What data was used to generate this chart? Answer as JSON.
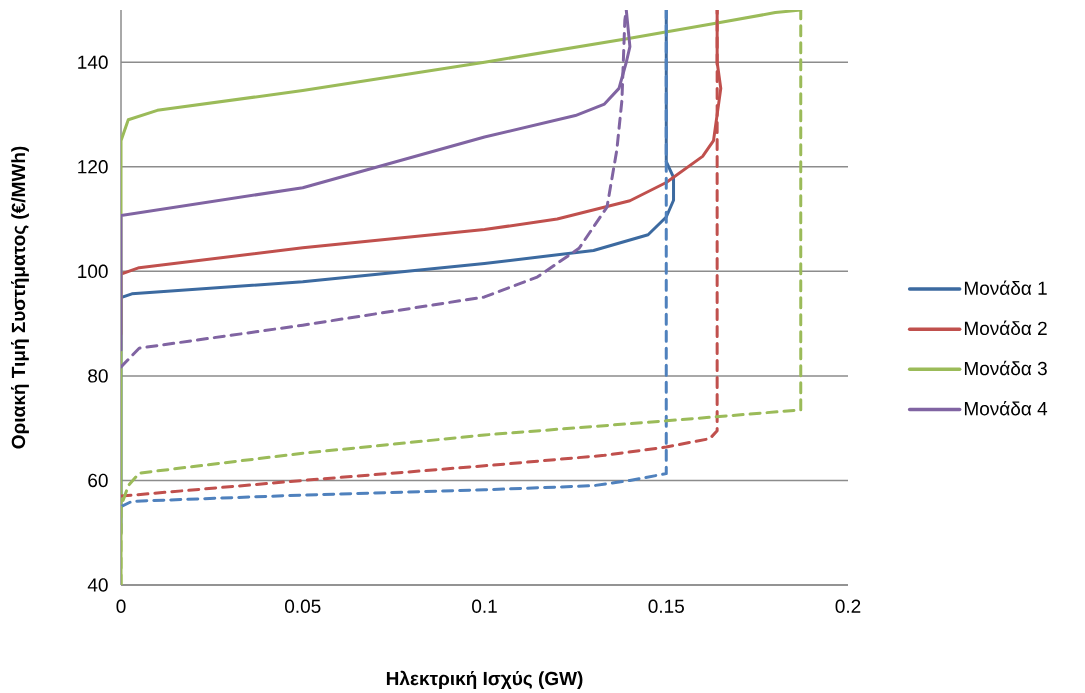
{
  "chart_data": {
    "type": "line",
    "xlabel": "Ηλεκτρική Ισχύς (GW)",
    "ylabel": "Οριακή Τιμή Συστήματος (€/MWh)",
    "xlim": [
      0,
      0.2
    ],
    "ylim": [
      40,
      150
    ],
    "xticks": [
      0,
      0.05,
      0.1,
      0.15,
      0.2
    ],
    "yticks": [
      40,
      60,
      80,
      100,
      120,
      140
    ],
    "grid": "y",
    "legend": "right",
    "marker": "none",
    "series": [
      {
        "name": "Μονάδα 1",
        "color": "#3c6aa0",
        "line_style": "solid",
        "x": [
          0,
          0,
          0.003,
          0.05,
          0.1,
          0.13,
          0.145,
          0.15,
          0.152,
          0.152,
          0.15,
          0.15
        ],
        "values": [
          50,
          95,
          95.7,
          98,
          101.5,
          104,
          107,
          110.4,
          113.6,
          118,
          121,
          150
        ]
      },
      {
        "name": "Μονάδα 2",
        "color": "#c0504d",
        "line_style": "solid",
        "x": [
          0,
          0,
          0.005,
          0.05,
          0.1,
          0.12,
          0.14,
          0.15,
          0.16,
          0.163,
          0.165,
          0.164,
          0.164
        ],
        "values": [
          88,
          99.5,
          100.7,
          104.5,
          108,
          110,
          113.5,
          117,
          122,
          125,
          135,
          140,
          150
        ]
      },
      {
        "name": "Μονάδα 3",
        "color": "#9bbb59",
        "line_style": "solid",
        "x": [
          0,
          0,
          0.002,
          0.01,
          0.05,
          0.1,
          0.14,
          0.164,
          0.18,
          0.187
        ],
        "values": [
          40,
          125,
          129,
          130.8,
          134.6,
          140,
          144.6,
          147.5,
          149.5,
          150
        ]
      },
      {
        "name": "Μονάδα 4",
        "color": "#8064a2",
        "line_style": "solid",
        "x": [
          0,
          0,
          0.05,
          0.1,
          0.125,
          0.133,
          0.137,
          0.139,
          0.14,
          0.139
        ],
        "values": [
          85,
          110.7,
          116,
          125.7,
          129.8,
          132,
          135,
          140,
          143,
          150
        ]
      },
      {
        "color": "#4f81bd",
        "line_style": "dashed",
        "x": [
          0,
          0.003,
          0.05,
          0.1,
          0.13,
          0.14,
          0.15,
          0.15
        ],
        "values": [
          55,
          56,
          57.2,
          58.2,
          59,
          60,
          61.3,
          150
        ]
      },
      {
        "color": "#c0504d",
        "line_style": "dashed",
        "x": [
          0,
          0.05,
          0.1,
          0.133,
          0.15,
          0.162,
          0.164,
          0.164
        ],
        "values": [
          57,
          60,
          62.8,
          64.8,
          66.4,
          68,
          69.5,
          150
        ]
      },
      {
        "color": "#9bbb59",
        "line_style": "dashed",
        "x": [
          0,
          0,
          0.002,
          0.005,
          0.05,
          0.1,
          0.15,
          0.187,
          0.187
        ],
        "values": [
          40,
          55,
          59,
          61.4,
          65.2,
          68.7,
          71.4,
          73.5,
          150
        ]
      },
      {
        "color": "#8064a2",
        "line_style": "dashed",
        "x": [
          0,
          0.005,
          0.05,
          0.1,
          0.1145,
          0.126,
          0.1337,
          0.1364,
          0.1378,
          0.1386,
          0.139
        ],
        "values": [
          81.7,
          85.3,
          89.7,
          95.1,
          98.9,
          104.4,
          112.3,
          123.2,
          132.7,
          148,
          150
        ]
      }
    ]
  }
}
